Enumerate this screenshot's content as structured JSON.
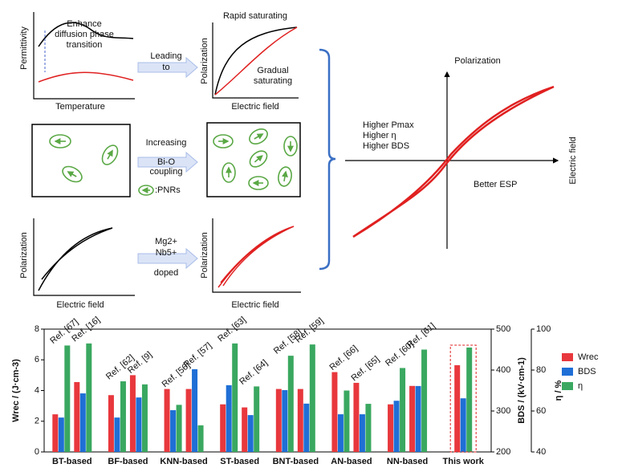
{
  "diagram": {
    "p1": {
      "ylabel": "Permittivity",
      "xlabel": "Temperature",
      "note": [
        "Enhance",
        "diffusion phase",
        "transition"
      ]
    },
    "a1": [
      "Leading",
      "to"
    ],
    "p2": {
      "ylabel": "Polarization",
      "xlabel": "Electric field",
      "top": "Rapid saturating",
      "bottom": [
        "Gradual",
        "saturating"
      ]
    },
    "a2": [
      "Increasing",
      "Bi-O",
      "coupling"
    ],
    "pnr": ":PNRs",
    "p5": {
      "ylabel": "Polarization",
      "xlabel": "Electric field"
    },
    "a3": [
      "Mg2+",
      "Nb5+",
      "doped"
    ],
    "p6": {
      "ylabel": "Polarization",
      "xlabel": "Electric field"
    },
    "right": {
      "ylabel": "Polarization",
      "xlabel": "Electric field",
      "notes": [
        "Higher Pmax",
        "Higher η",
        "Higher BDS"
      ],
      "esp": "Better ESP"
    }
  },
  "chart_data": {
    "type": "bar",
    "groups": [
      {
        "label": "BT-based",
        "categories": [
          "Ref. [67]",
          "Ref. [16]"
        ]
      },
      {
        "label": "BF-based",
        "categories": [
          "Ref. [62]",
          "Ref. [9]"
        ]
      },
      {
        "label": "KNN-based",
        "categories": [
          "Ref. [56]",
          "Ref. [57]"
        ]
      },
      {
        "label": "ST-based",
        "categories": [
          "Ref. [63]",
          "Ref. [64]"
        ]
      },
      {
        "label": "BNT-based",
        "categories": [
          "Ref. [58]",
          "Ref. [59]"
        ]
      },
      {
        "label": "AN-based",
        "categories": [
          "Ref. [66]",
          "Ref. [65]"
        ]
      },
      {
        "label": "NN-based",
        "categories": [
          "Ref. [60]",
          "Ref. [61]"
        ]
      },
      {
        "label": "This work",
        "categories": [
          null
        ]
      }
    ],
    "series": [
      {
        "name": "Wrec",
        "color": "#e8383d",
        "axis": "y",
        "values": [
          2.45,
          4.55,
          3.7,
          5.0,
          4.1,
          4.1,
          3.1,
          2.9,
          4.1,
          4.1,
          5.2,
          4.5,
          3.1,
          4.3,
          5.65
        ]
      },
      {
        "name": "BDS",
        "color": "#1f6fd6",
        "axis": "y2",
        "values": [
          284,
          343,
          284,
          333,
          302,
          402,
          363,
          290,
          351,
          318,
          292,
          292,
          325,
          361,
          331
        ]
      },
      {
        "name": "η",
        "color": "#3aa860",
        "axis": "y3",
        "values": [
          92,
          93,
          74.5,
          73,
          63,
          53,
          93,
          72,
          87,
          92.5,
          70,
          63.5,
          81,
          90,
          91
        ]
      }
    ],
    "ylabel": "Wrec / (J·cm-3)",
    "y2label": "BDS / (kV·cm-1)",
    "y3label": "η / %",
    "ylim": [
      0,
      8
    ],
    "yticks": [
      0,
      2,
      4,
      6,
      8
    ],
    "y2lim": [
      200,
      500
    ],
    "y2ticks": [
      200,
      300,
      400,
      500
    ],
    "y3lim": [
      40,
      100
    ],
    "y3ticks": [
      40,
      60,
      80,
      100
    ],
    "legend": "right"
  }
}
